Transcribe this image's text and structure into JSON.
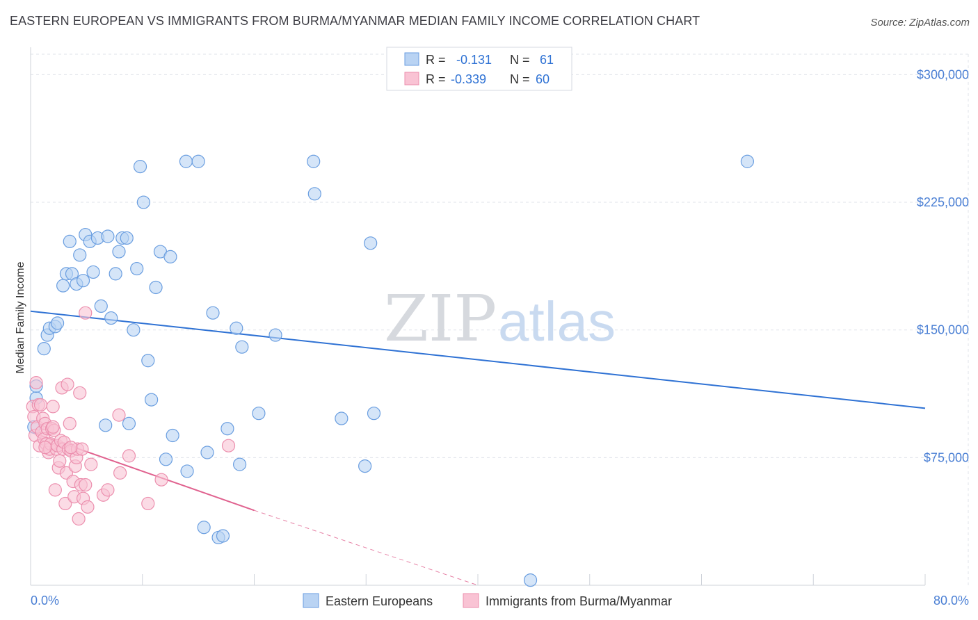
{
  "header": {
    "title": "EASTERN EUROPEAN VS IMMIGRANTS FROM BURMA/MYANMAR MEDIAN FAMILY INCOME CORRELATION CHART",
    "source": "Source: ZipAtlas.com"
  },
  "watermark": {
    "part1": "ZIP",
    "part2": "atlas"
  },
  "colors": {
    "blue_fill": "#b9d3f3",
    "blue_stroke": "#6a9ee0",
    "blue_line": "#2f72d4",
    "pink_fill": "#f9c3d4",
    "pink_stroke": "#ec8fae",
    "pink_line": "#e0628f",
    "grid": "#dfe3ea",
    "tick_text": "#4a7fd4"
  },
  "stats_box": {
    "rows": [
      {
        "r_label": "R =",
        "r_value": "-0.131",
        "n_label": "N =",
        "n_value": "61",
        "series": "blue"
      },
      {
        "r_label": "R =",
        "r_value": "-0.339",
        "n_label": "N =",
        "n_value": "60",
        "series": "pink"
      }
    ]
  },
  "chart_data": {
    "type": "scatter",
    "title": "EASTERN EUROPEAN VS IMMIGRANTS FROM BURMA/MYANMAR MEDIAN FAMILY INCOME CORRELATION CHART",
    "xlabel": "",
    "ylabel": "Median Family Income",
    "xlim": [
      0,
      80
    ],
    "ylim": [
      0,
      312000
    ],
    "x_unit": "%",
    "y_ticks": [
      75000,
      150000,
      225000,
      300000
    ],
    "y_tick_labels": [
      "$75,000",
      "$150,000",
      "$225,000",
      "$300,000"
    ],
    "x_tick_labels": [
      "0.0%",
      "80.0%"
    ],
    "grid": true,
    "legend_position": "bottom",
    "series": [
      {
        "name": "Eastern Europeans",
        "color": "#b9d3f3",
        "trend": {
          "x": [
            0,
            80
          ],
          "y": [
            161000,
            104000
          ],
          "style": "solid"
        },
        "points": [
          [
            0.3,
            93000
          ],
          [
            0.5,
            110000
          ],
          [
            0.5,
            117000
          ],
          [
            1.2,
            139000
          ],
          [
            1.5,
            147000
          ],
          [
            1.7,
            151000
          ],
          [
            2.2,
            152000
          ],
          [
            2.4,
            154000
          ],
          [
            2.9,
            176000
          ],
          [
            3.2,
            183000
          ],
          [
            3.5,
            202000
          ],
          [
            3.7,
            183000
          ],
          [
            4.1,
            177000
          ],
          [
            4.4,
            194000
          ],
          [
            4.7,
            179000
          ],
          [
            4.9,
            206000
          ],
          [
            5.3,
            202000
          ],
          [
            5.6,
            184000
          ],
          [
            6.0,
            204000
          ],
          [
            6.3,
            164000
          ],
          [
            6.7,
            94000
          ],
          [
            6.9,
            205000
          ],
          [
            7.2,
            157000
          ],
          [
            7.6,
            183000
          ],
          [
            7.9,
            196000
          ],
          [
            8.2,
            204000
          ],
          [
            8.6,
            204000
          ],
          [
            8.8,
            95000
          ],
          [
            9.2,
            150000
          ],
          [
            9.5,
            186000
          ],
          [
            9.8,
            246000
          ],
          [
            10.1,
            225000
          ],
          [
            10.5,
            132000
          ],
          [
            10.8,
            109000
          ],
          [
            11.2,
            175000
          ],
          [
            11.6,
            196000
          ],
          [
            12.1,
            74000
          ],
          [
            12.5,
            193000
          ],
          [
            12.7,
            88000
          ],
          [
            13.9,
            249000
          ],
          [
            14.0,
            67000
          ],
          [
            15.0,
            249000
          ],
          [
            15.5,
            34000
          ],
          [
            15.8,
            78000
          ],
          [
            16.3,
            160000
          ],
          [
            16.8,
            28000
          ],
          [
            17.2,
            29000
          ],
          [
            17.6,
            92000
          ],
          [
            18.4,
            151000
          ],
          [
            18.7,
            71000
          ],
          [
            18.9,
            140000
          ],
          [
            20.4,
            101000
          ],
          [
            21.9,
            147000
          ],
          [
            25.3,
            249000
          ],
          [
            25.4,
            230000
          ],
          [
            27.8,
            98000
          ],
          [
            29.9,
            70000
          ],
          [
            30.4,
            201000
          ],
          [
            30.7,
            101000
          ],
          [
            44.7,
            3000
          ],
          [
            64.1,
            249000
          ]
        ]
      },
      {
        "name": "Immigrants from Burma/Myanmar",
        "color": "#f9c3d4",
        "trend": {
          "x": [
            0,
            20
          ],
          "y": [
            90000,
            44000
          ],
          "style": "solid",
          "extended_to": [
            40,
            0
          ],
          "extended_style": "dashed"
        },
        "points": [
          [
            0.2,
            105000
          ],
          [
            0.3,
            99000
          ],
          [
            0.4,
            88000
          ],
          [
            0.5,
            119000
          ],
          [
            0.6,
            93000
          ],
          [
            0.7,
            106000
          ],
          [
            0.8,
            82000
          ],
          [
            0.9,
            106000
          ],
          [
            1.0,
            90000
          ],
          [
            1.1,
            98000
          ],
          [
            1.2,
            86000
          ],
          [
            1.3,
            95000
          ],
          [
            1.4,
            83000
          ],
          [
            1.5,
            92000
          ],
          [
            1.6,
            78000
          ],
          [
            1.7,
            80000
          ],
          [
            1.8,
            83000
          ],
          [
            1.9,
            92000
          ],
          [
            2.0,
            105000
          ],
          [
            2.1,
            91000
          ],
          [
            2.2,
            56000
          ],
          [
            2.3,
            80000
          ],
          [
            2.4,
            82000
          ],
          [
            2.5,
            69000
          ],
          [
            2.6,
            73000
          ],
          [
            2.7,
            85000
          ],
          [
            2.8,
            116000
          ],
          [
            2.9,
            80000
          ],
          [
            3.0,
            84000
          ],
          [
            3.1,
            48000
          ],
          [
            3.2,
            66000
          ],
          [
            3.3,
            118000
          ],
          [
            3.4,
            80000
          ],
          [
            3.5,
            95000
          ],
          [
            3.6,
            79000
          ],
          [
            3.8,
            61000
          ],
          [
            3.9,
            52000
          ],
          [
            4.0,
            70000
          ],
          [
            4.1,
            75000
          ],
          [
            4.2,
            80000
          ],
          [
            4.3,
            39000
          ],
          [
            4.4,
            113000
          ],
          [
            4.5,
            59000
          ],
          [
            4.6,
            80000
          ],
          [
            4.7,
            51000
          ],
          [
            4.9,
            59000
          ],
          [
            5.1,
            46000
          ],
          [
            5.4,
            71000
          ],
          [
            6.5,
            53000
          ],
          [
            6.9,
            56000
          ],
          [
            7.9,
            100000
          ],
          [
            8.0,
            66000
          ],
          [
            8.8,
            76000
          ],
          [
            10.5,
            48000
          ],
          [
            11.7,
            62000
          ],
          [
            17.7,
            82000
          ],
          [
            4.9,
            160000
          ],
          [
            2.0,
            93000
          ],
          [
            1.3,
            81000
          ],
          [
            3.6,
            81000
          ]
        ]
      }
    ]
  }
}
